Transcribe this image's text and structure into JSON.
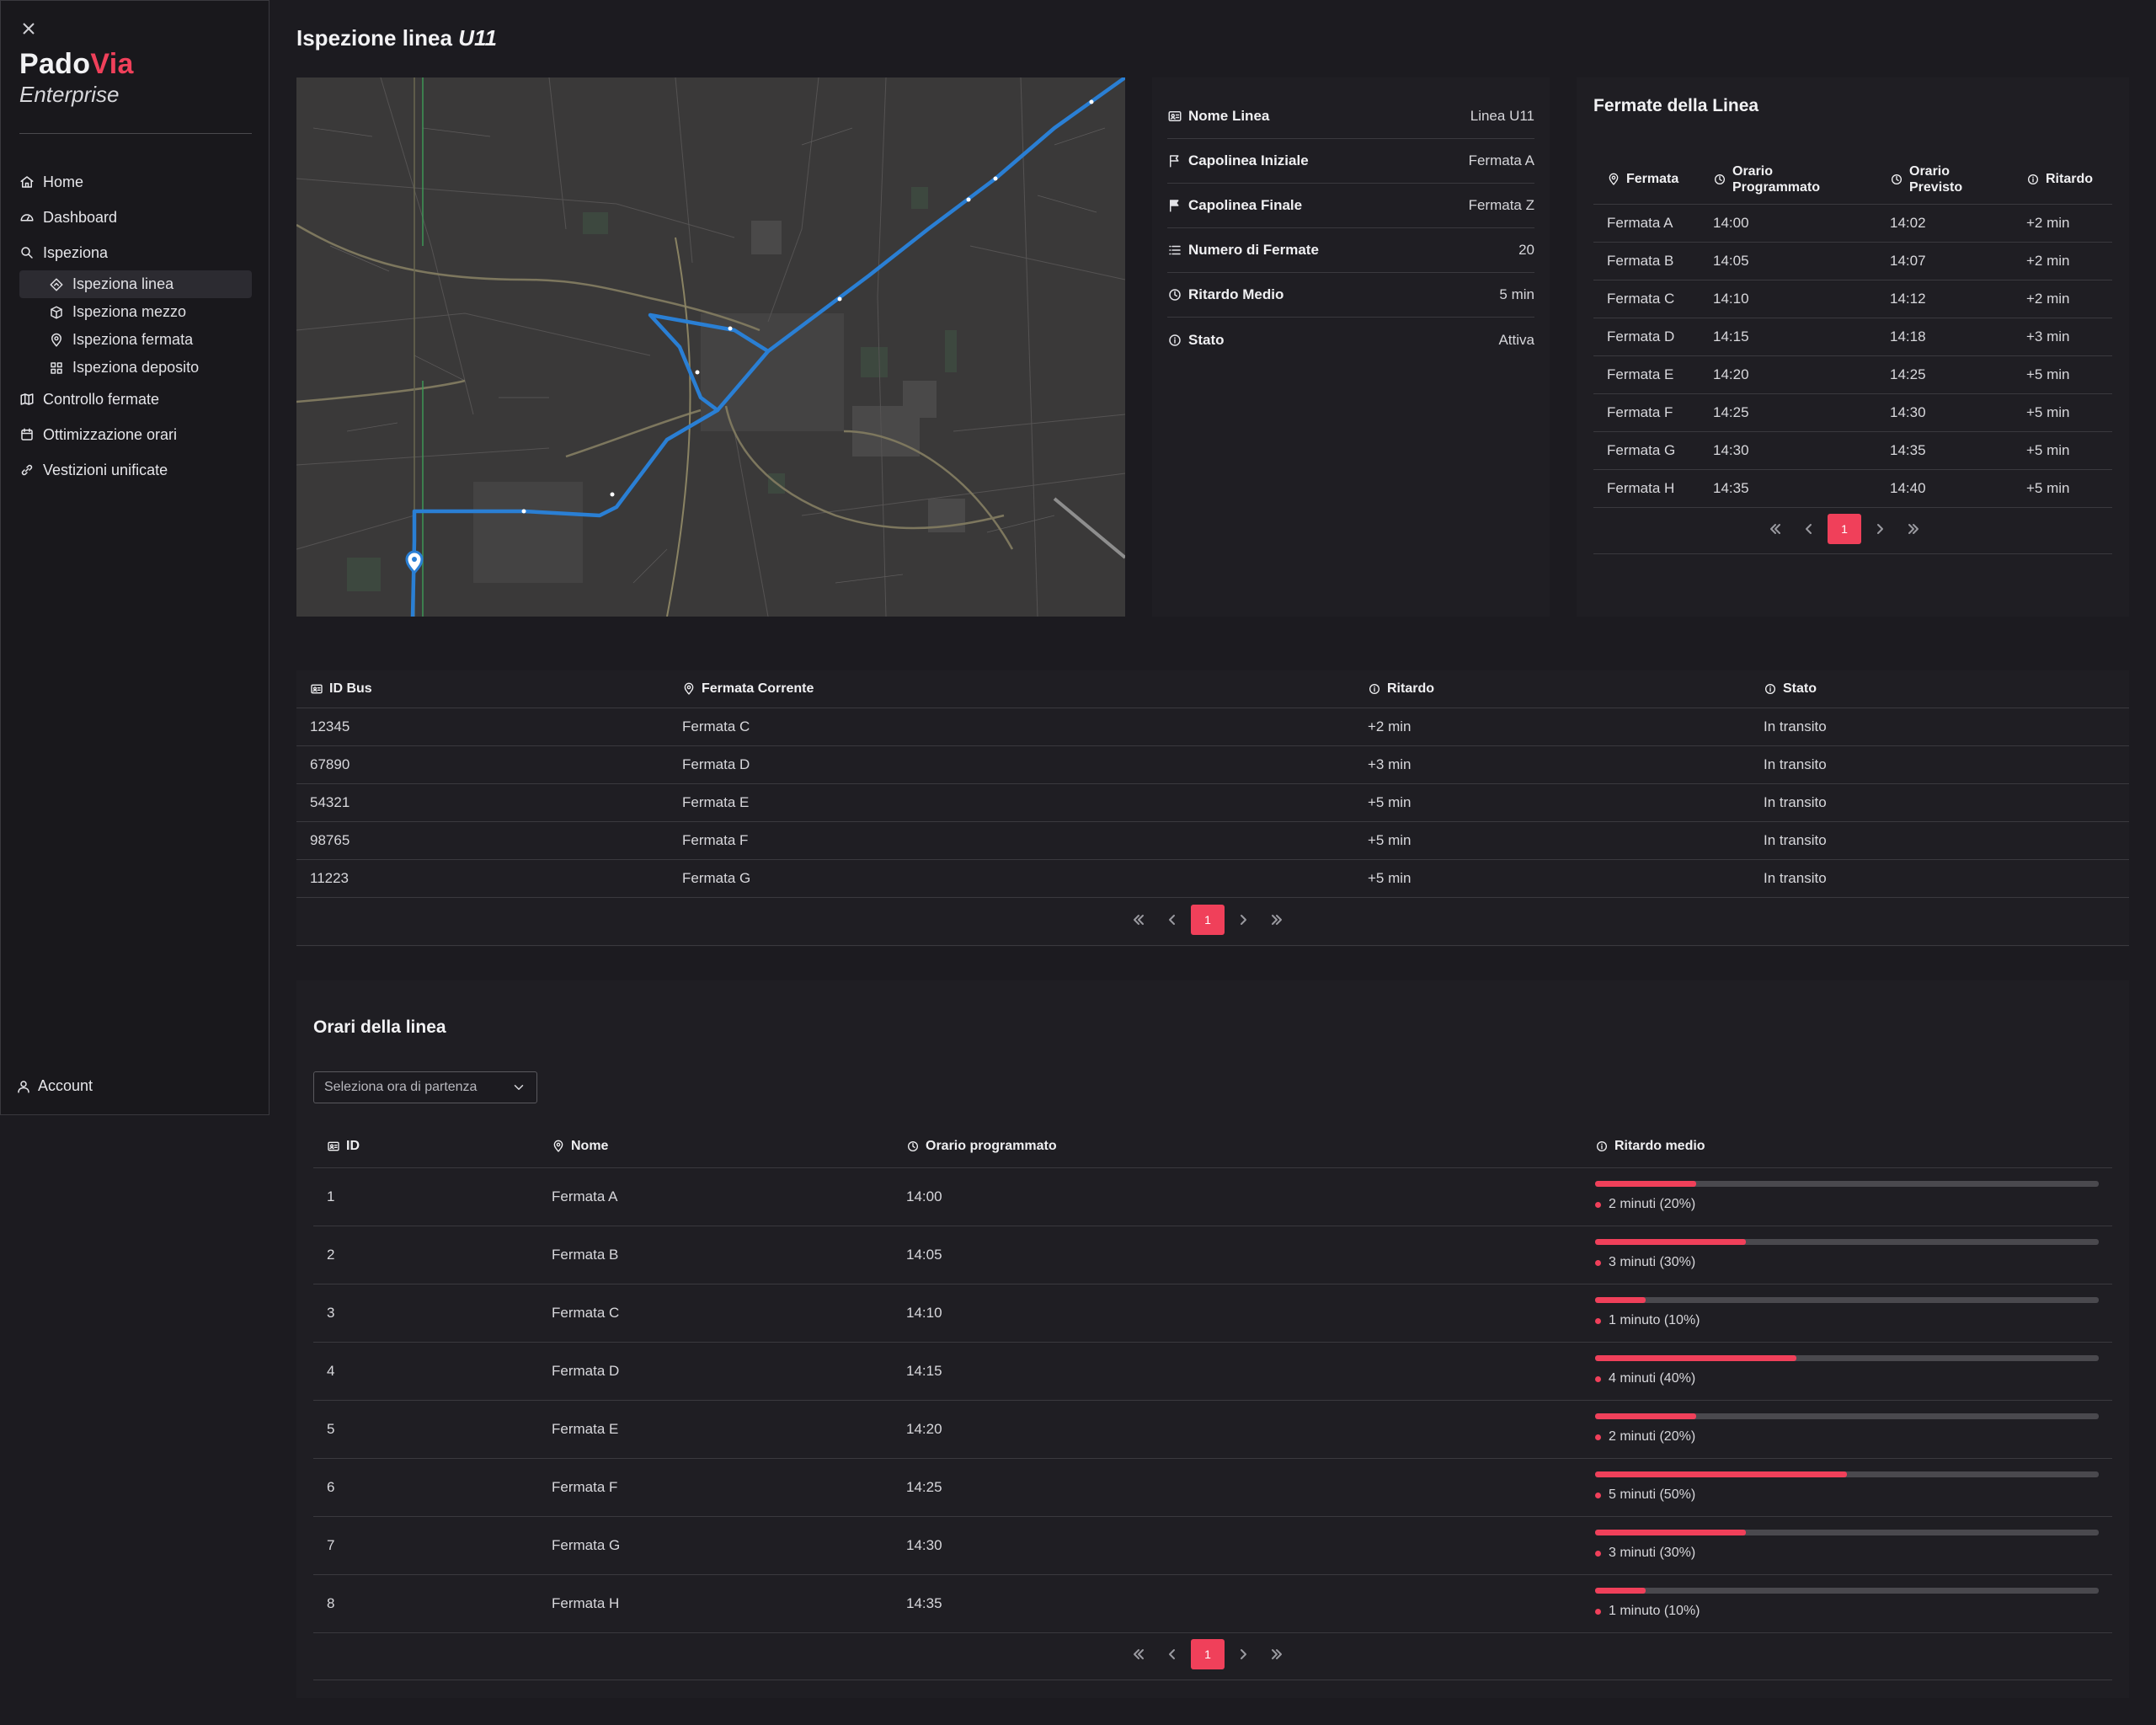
{
  "brand": {
    "part1": "Pado",
    "part2": "Via",
    "subtitle": "Enterprise",
    "accent": "#f0405a"
  },
  "sidebar": {
    "items": [
      {
        "label": "Home",
        "icon": "home-icon"
      },
      {
        "label": "Dashboard",
        "icon": "gauge-icon"
      },
      {
        "label": "Ispeziona",
        "icon": "search-icon"
      },
      {
        "label": "Controllo fermate",
        "icon": "map-icon"
      },
      {
        "label": "Ottimizzazione orari",
        "icon": "calendar-icon"
      },
      {
        "label": "Vestizioni unificate",
        "icon": "link-icon"
      }
    ],
    "sub_items": [
      {
        "label": "Ispeziona linea",
        "icon": "route-icon",
        "active": true
      },
      {
        "label": "Ispeziona mezzo",
        "icon": "box-icon"
      },
      {
        "label": "Ispeziona fermata",
        "icon": "pin-icon"
      },
      {
        "label": "Ispeziona deposito",
        "icon": "grid-icon"
      }
    ],
    "account": "Account"
  },
  "page": {
    "title_prefix": "Ispezione linea",
    "line_code": "U11"
  },
  "line_info": [
    {
      "label": "Nome Linea",
      "value": "Linea U11",
      "icon": "id-card-icon"
    },
    {
      "label": "Capolinea Iniziale",
      "value": "Fermata A",
      "icon": "flag-outline-icon"
    },
    {
      "label": "Capolinea Finale",
      "value": "Fermata Z",
      "icon": "flag-filled-icon"
    },
    {
      "label": "Numero di Fermate",
      "value": "20",
      "icon": "list-icon"
    },
    {
      "label": "Ritardo Medio",
      "value": "5 min",
      "icon": "clock-icon"
    },
    {
      "label": "Stato",
      "value": "Attiva",
      "icon": "info-icon"
    }
  ],
  "stops": {
    "title": "Fermate della Linea",
    "headers": {
      "stop": "Fermata",
      "scheduled": "Orario Programmato",
      "expected": "Orario Previsto",
      "delay": "Ritardo"
    },
    "rows": [
      {
        "stop": "Fermata A",
        "scheduled": "14:00",
        "expected": "14:02",
        "delay": "+2 min"
      },
      {
        "stop": "Fermata B",
        "scheduled": "14:05",
        "expected": "14:07",
        "delay": "+2 min"
      },
      {
        "stop": "Fermata C",
        "scheduled": "14:10",
        "expected": "14:12",
        "delay": "+2 min"
      },
      {
        "stop": "Fermata D",
        "scheduled": "14:15",
        "expected": "14:18",
        "delay": "+3 min"
      },
      {
        "stop": "Fermata E",
        "scheduled": "14:20",
        "expected": "14:25",
        "delay": "+5 min"
      },
      {
        "stop": "Fermata F",
        "scheduled": "14:25",
        "expected": "14:30",
        "delay": "+5 min"
      },
      {
        "stop": "Fermata G",
        "scheduled": "14:30",
        "expected": "14:35",
        "delay": "+5 min"
      },
      {
        "stop": "Fermata H",
        "scheduled": "14:35",
        "expected": "14:40",
        "delay": "+5 min"
      }
    ],
    "page": "1"
  },
  "buses": {
    "headers": {
      "id": "ID Bus",
      "stop": "Fermata Corrente",
      "delay": "Ritardo",
      "status": "Stato"
    },
    "rows": [
      {
        "id": "12345",
        "stop": "Fermata C",
        "delay": "+2 min",
        "status": "In transito"
      },
      {
        "id": "67890",
        "stop": "Fermata D",
        "delay": "+3 min",
        "status": "In transito"
      },
      {
        "id": "54321",
        "stop": "Fermata E",
        "delay": "+5 min",
        "status": "In transito"
      },
      {
        "id": "98765",
        "stop": "Fermata F",
        "delay": "+5 min",
        "status": "In transito"
      },
      {
        "id": "11223",
        "stop": "Fermata G",
        "delay": "+5 min",
        "status": "In transito"
      }
    ],
    "page": "1"
  },
  "schedule": {
    "title": "Orari della linea",
    "select_placeholder": "Seleziona ora di partenza",
    "headers": {
      "id": "ID",
      "name": "Nome",
      "time": "Orario programmato",
      "delay": "Ritardo medio"
    },
    "rows": [
      {
        "id": "1",
        "name": "Fermata A",
        "time": "14:00",
        "delay_label": "2 minuti (20%)",
        "delay_pct": 20
      },
      {
        "id": "2",
        "name": "Fermata B",
        "time": "14:05",
        "delay_label": "3 minuti (30%)",
        "delay_pct": 30
      },
      {
        "id": "3",
        "name": "Fermata C",
        "time": "14:10",
        "delay_label": "1 minuto (10%)",
        "delay_pct": 10
      },
      {
        "id": "4",
        "name": "Fermata D",
        "time": "14:15",
        "delay_label": "4 minuti (40%)",
        "delay_pct": 40
      },
      {
        "id": "5",
        "name": "Fermata E",
        "time": "14:20",
        "delay_label": "2 minuti (20%)",
        "delay_pct": 20
      },
      {
        "id": "6",
        "name": "Fermata F",
        "time": "14:25",
        "delay_label": "5 minuti (50%)",
        "delay_pct": 50
      },
      {
        "id": "7",
        "name": "Fermata G",
        "time": "14:30",
        "delay_label": "3 minuti (30%)",
        "delay_pct": 30
      },
      {
        "id": "8",
        "name": "Fermata H",
        "time": "14:35",
        "delay_label": "1 minuto (10%)",
        "delay_pct": 10
      }
    ],
    "page": "1"
  }
}
